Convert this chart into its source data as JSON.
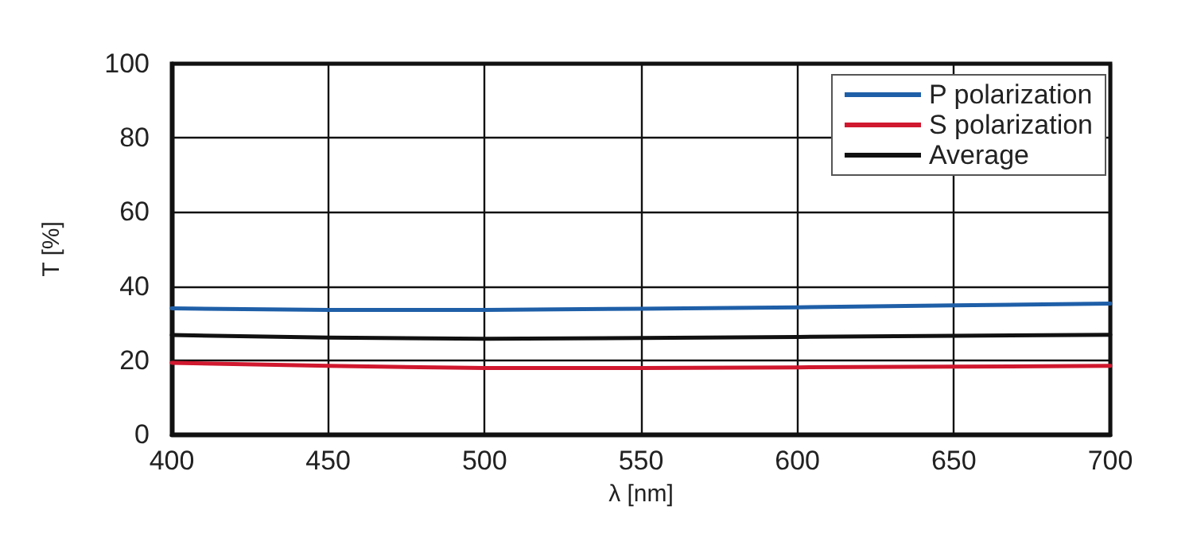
{
  "chart_data": {
    "type": "line",
    "xlabel": "λ [nm]",
    "ylabel": "T [%]",
    "x": [
      400,
      450,
      500,
      550,
      600,
      650,
      700
    ],
    "series": [
      {
        "name": "P polarization",
        "color": "#1f5fa8",
        "values": [
          34,
          33.6,
          33.6,
          33.9,
          34.3,
          34.8,
          35.3
        ]
      },
      {
        "name": "S polarization",
        "color": "#d0182e",
        "values": [
          19.3,
          18.5,
          17.9,
          17.9,
          18.1,
          18.3,
          18.5
        ]
      },
      {
        "name": "Average",
        "color": "#111111",
        "values": [
          26.8,
          26.1,
          25.8,
          26,
          26.3,
          26.6,
          26.9
        ]
      }
    ],
    "xlim": [
      400,
      700
    ],
    "xticks": [
      400,
      450,
      500,
      550,
      600,
      650,
      700
    ],
    "ylim": [
      0,
      100
    ],
    "yticks": [
      0,
      20,
      40,
      60,
      80,
      100
    ],
    "grid": true,
    "legend": "top right",
    "marker": "none",
    "line_style": "solid"
  }
}
